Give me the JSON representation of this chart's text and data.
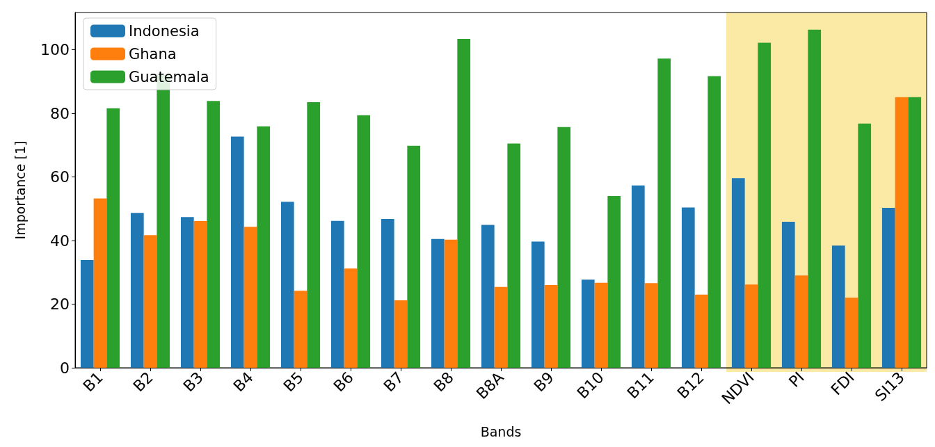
{
  "chart_data": {
    "type": "bar",
    "xlabel": "Bands",
    "ylabel": "Importance [1]",
    "categories": [
      "B1",
      "B2",
      "B3",
      "B4",
      "B5",
      "B6",
      "B7",
      "B8",
      "B8A",
      "B9",
      "B10",
      "B11",
      "B12",
      "NDVI",
      "PI",
      "FDI",
      "SI13"
    ],
    "series": [
      {
        "name": "Indonesia",
        "color": "#1f77b4",
        "values": [
          33.9,
          48.7,
          47.4,
          72.7,
          52.2,
          46.2,
          46.8,
          40.5,
          44.9,
          39.7,
          27.7,
          57.3,
          50.4,
          59.6,
          45.9,
          38.4,
          50.3
        ]
      },
      {
        "name": "Ghana",
        "color": "#ff7f0e",
        "values": [
          53.2,
          41.7,
          46.1,
          44.3,
          24.2,
          31.2,
          21.2,
          40.3,
          25.4,
          26.0,
          26.7,
          26.6,
          23.0,
          26.2,
          29.0,
          22.0,
          85.1
        ]
      },
      {
        "name": "Guatemala",
        "color": "#2ca02c",
        "values": [
          81.6,
          92.0,
          83.9,
          75.9,
          83.5,
          79.4,
          69.8,
          103.4,
          70.5,
          75.7,
          54.0,
          97.2,
          91.7,
          102.2,
          106.3,
          76.8,
          85.1
        ]
      }
    ],
    "ylim": [
      0,
      111.7
    ],
    "yticks": [
      0,
      20,
      40,
      60,
      80,
      100
    ],
    "grid": false,
    "legend": "top left",
    "bands": [
      {
        "axis": "x",
        "from": "NDVI",
        "to": "SI13",
        "color": "#fbe9a6"
      }
    ]
  }
}
